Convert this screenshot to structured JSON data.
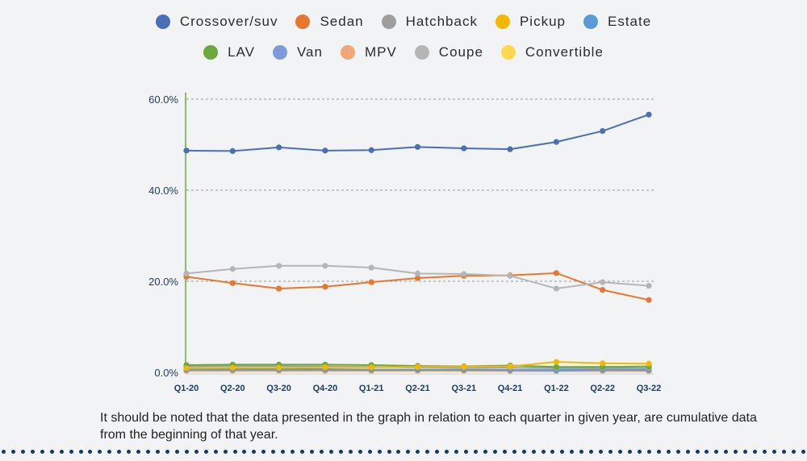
{
  "chart_data": {
    "type": "line",
    "title": "",
    "xlabel": "",
    "ylabel": "",
    "categories": [
      "Q1-20",
      "Q2-20",
      "Q3-20",
      "Q4-20",
      "Q1-21",
      "Q2-21",
      "Q3-21",
      "Q4-21",
      "Q1-22",
      "Q2-22",
      "Q3-22"
    ],
    "y_ticks": [
      "0.0%",
      "20.0%",
      "40.0%",
      "60.0%"
    ],
    "ylim": [
      0,
      60
    ],
    "grid": "horizontal dashed",
    "legend_position": "top",
    "series": [
      {
        "name": "Crossover/suv",
        "color": "#4a6fb5",
        "values": [
          48.7,
          48.6,
          49.4,
          48.7,
          48.8,
          49.5,
          49.2,
          49.0,
          50.6,
          53.0,
          56.6
        ]
      },
      {
        "name": "Sedan",
        "color": "#e8772e",
        "values": [
          21.0,
          19.6,
          18.4,
          18.8,
          19.8,
          20.7,
          21.2,
          21.3,
          21.8,
          18.1,
          15.9
        ]
      },
      {
        "name": "Hatchback",
        "color": "#9e9e9e",
        "values": [
          1.3,
          1.4,
          1.4,
          1.3,
          1.2,
          1.1,
          1.0,
          1.0,
          0.9,
          0.9,
          0.9
        ]
      },
      {
        "name": "Pickup",
        "color": "#f5b800",
        "values": [
          0.9,
          1.0,
          1.0,
          1.1,
          1.1,
          1.2,
          1.2,
          1.3,
          2.3,
          2.0,
          1.9
        ]
      },
      {
        "name": "Estate",
        "color": "#5b9bd5",
        "values": [
          0.7,
          0.7,
          0.7,
          0.7,
          0.6,
          0.6,
          0.6,
          0.5,
          0.5,
          0.6,
          0.5
        ]
      },
      {
        "name": "LAV",
        "color": "#6aaa3c",
        "values": [
          1.6,
          1.7,
          1.7,
          1.7,
          1.6,
          1.4,
          1.3,
          1.5,
          1.2,
          1.2,
          1.3
        ]
      },
      {
        "name": "Van",
        "color": "#7f9ad6",
        "values": [
          0.5,
          0.5,
          0.5,
          0.5,
          0.5,
          0.5,
          0.5,
          0.5,
          0.4,
          0.5,
          0.5
        ]
      },
      {
        "name": "MPV",
        "color": "#f0a878",
        "values": [
          0.4,
          0.4,
          0.4,
          0.4,
          0.4,
          0.4,
          0.4,
          0.3,
          0.3,
          0.3,
          0.3
        ]
      },
      {
        "name": "Coupe",
        "color": "#b5b5b5",
        "values": [
          21.7,
          22.7,
          23.4,
          23.4,
          23.0,
          21.7,
          21.6,
          21.2,
          18.4,
          19.8,
          19.0
        ]
      },
      {
        "name": "Convertible",
        "color": "#ffd84d",
        "values": [
          0.2,
          0.2,
          0.2,
          0.2,
          0.2,
          0.2,
          0.2,
          0.2,
          0.2,
          0.2,
          0.2
        ]
      }
    ]
  },
  "note": "It should be noted that the data presented in the graph in relation to each quarter in given year, are cumulative data from the beginning of that year."
}
